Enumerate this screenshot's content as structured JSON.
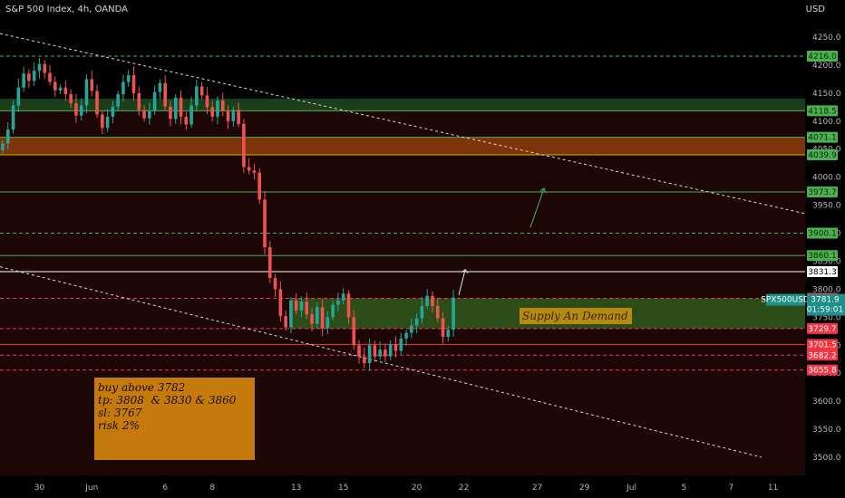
{
  "header": {
    "title": "S&P 500 Index, 4h, OANDA",
    "currency": "USD"
  },
  "chart_data": {
    "type": "candlestick",
    "title": "S&P 500 Index, 4h, OANDA",
    "ylim": [
      3470,
      4275
    ],
    "y_ticks": [
      4250,
      4200,
      4150,
      4100,
      4050,
      4000,
      3950,
      3900,
      3850,
      3800,
      3750,
      3700,
      3650,
      3600,
      3550,
      3500
    ],
    "x_ticks": [
      {
        "label": "30",
        "i": 7
      },
      {
        "label": "Jun",
        "i": 17
      },
      {
        "label": "6",
        "i": 31
      },
      {
        "label": "8",
        "i": 40
      },
      {
        "label": "13",
        "i": 56
      },
      {
        "label": "15",
        "i": 65
      },
      {
        "label": "20",
        "i": 79
      },
      {
        "label": "22",
        "i": 88
      },
      {
        "label": "27",
        "i": 102
      },
      {
        "label": "29",
        "i": 111
      },
      {
        "label": "Jul",
        "i": 120
      },
      {
        "label": "5",
        "i": 130
      },
      {
        "label": "7",
        "i": 139
      },
      {
        "label": "11",
        "i": 147
      }
    ],
    "closes": [
      4060,
      4085,
      4128,
      4160,
      4185,
      4172,
      4190,
      4202,
      4186,
      4170,
      4155,
      4160,
      4148,
      4132,
      4110,
      4128,
      4175,
      4154,
      4112,
      4088,
      4108,
      4126,
      4148,
      4170,
      4182,
      4150,
      4120,
      4105,
      4118,
      4152,
      4168,
      4126,
      4104,
      4142,
      4108,
      4094,
      4128,
      4162,
      4146,
      4125,
      4108,
      4137,
      4118,
      4100,
      4120,
      4095,
      4018,
      4012,
      4008,
      3960,
      3875,
      3820,
      3800,
      3752,
      3732,
      3780,
      3762,
      3778,
      3755,
      3738,
      3768,
      3730,
      3750,
      3772,
      3780,
      3792,
      3750,
      3700,
      3680,
      3668,
      3700,
      3680,
      3692,
      3680,
      3702,
      3690,
      3712,
      3722,
      3735,
      3748,
      3770,
      3788,
      3770,
      3748,
      3715,
      3728,
      3785
    ],
    "levels": [
      {
        "value": 4216.0,
        "label": "4216.0",
        "style": "dash",
        "color": "#4caf50",
        "tag": "#4caf50"
      },
      {
        "value": 4118.5,
        "label": "4118.5",
        "style": "solid",
        "color": "#4caf50",
        "tag": "#4caf50"
      },
      {
        "value": 4071.1,
        "label": "4071.1",
        "style": "solid",
        "color": "#4caf50",
        "tag": "#4caf50"
      },
      {
        "value": 4039.9,
        "label": "4039.9",
        "style": "solid",
        "color": "#c6b60b",
        "tag": "#4caf50"
      },
      {
        "value": 3973.7,
        "label": "3973.7",
        "style": "solid",
        "color": "#4caf50",
        "tag": "#4caf50"
      },
      {
        "value": 3900.1,
        "label": "3900.1",
        "style": "dash",
        "color": "#4caf50",
        "tag": "#4caf50"
      },
      {
        "value": 3860.1,
        "label": "3860.1",
        "style": "solid",
        "color": "#4caf50",
        "tag": "#4caf50"
      },
      {
        "value": 3831.3,
        "label": "3831.3",
        "style": "solid",
        "color": "#ffffff",
        "tag": "#ffffff"
      },
      {
        "value": 3783.6,
        "label": "3783.6",
        "style": "dash",
        "color": "#f23645",
        "tag": "#f23645"
      },
      {
        "value": 3729.7,
        "label": "3729.7",
        "style": "dash",
        "color": "#f23645",
        "tag": "#f23645"
      },
      {
        "value": 3701.5,
        "label": "3701.5",
        "style": "solid",
        "color": "#f23645",
        "tag": "#f23645"
      },
      {
        "value": 3682.2,
        "label": "3682.2",
        "style": "dash",
        "color": "#f23645",
        "tag": "#f23645"
      },
      {
        "value": 3655.8,
        "label": "3655.8",
        "style": "dash",
        "color": "#f23645",
        "tag": "#f23645"
      }
    ],
    "current": {
      "symbol": "SPX500USD",
      "price": "3781.9",
      "countdown": "01:59:01"
    },
    "zones": [
      {
        "name": "Supply An Demand",
        "low": 3729.7,
        "high": 3783.6
      }
    ]
  },
  "annotations": {
    "note_lines": [
      "buy above 3782",
      "",
      "tp: 3808  & 3830 & 3860",
      "sl: 3767",
      "",
      "risk 2%"
    ],
    "zone_label": "Supply An Demand"
  }
}
